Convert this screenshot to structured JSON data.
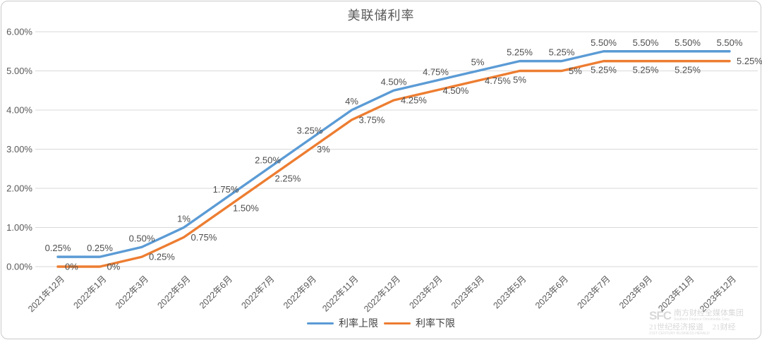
{
  "title": "美联储利率",
  "chart_data": {
    "type": "line",
    "title": "美联储利率",
    "categories": [
      "2021年12月",
      "2022年1月",
      "2022年3月",
      "2022年5月",
      "2022年6月",
      "2022年7月",
      "2022年9月",
      "2022年11月",
      "2022年12月",
      "2023年2月",
      "2023年3月",
      "2023年5月",
      "2023年6月",
      "2023年7月",
      "2023年9月",
      "2023年11月",
      "2023年12月"
    ],
    "series": [
      {
        "name": "利率上限",
        "color": "#5B9BD5",
        "values": [
          0.25,
          0.25,
          0.5,
          1,
          1.75,
          2.5,
          3.25,
          4,
          4.5,
          4.75,
          5,
          5.25,
          5.25,
          5.5,
          5.5,
          5.5,
          5.5
        ],
        "labels": [
          "0.25%",
          "0.25%",
          "0.50%",
          "1%",
          "1.75%",
          "2.50%",
          "3.25%",
          "4%",
          "4.50%",
          "4.75%",
          "5%",
          "5.25%",
          "5.25%",
          "5.50%",
          "5.50%",
          "5.50%",
          "5.50%"
        ],
        "label_pos": [
          "above",
          "above",
          "above",
          "above",
          "above",
          "above",
          "above",
          "above",
          "above",
          "above",
          "above",
          "above",
          "above",
          "above",
          "above",
          "above",
          "above"
        ]
      },
      {
        "name": "利率下限",
        "color": "#ED7D31",
        "values": [
          0,
          0,
          0.25,
          0.75,
          1.5,
          2.25,
          3,
          3.75,
          4.25,
          4.5,
          4.75,
          5,
          5,
          5.25,
          5.25,
          5.25,
          5.25
        ],
        "labels": [
          "0%",
          "0%",
          "0.25%",
          "0.75%",
          "1.50%",
          "2.25%",
          "3%",
          "3.75%",
          "4.25%",
          "4.50%",
          "4.75%",
          "5%",
          "5%",
          "5.25%",
          "5.25%",
          "5.25%",
          "5.25%"
        ],
        "label_pos": [
          "right",
          "right",
          "right",
          "right",
          "right",
          "right",
          "right",
          "right",
          "right",
          "right",
          "right",
          "below",
          "right",
          "below",
          "below",
          "below",
          "right"
        ]
      }
    ],
    "y_ticks": [
      "0.00%",
      "1.00%",
      "2.00%",
      "3.00%",
      "4.00%",
      "5.00%",
      "6.00%"
    ],
    "ylim": [
      0,
      6
    ],
    "grid": true,
    "legend_position": "bottom",
    "x_label_rotation": -45
  },
  "legend": {
    "items": [
      {
        "label": "利率上限",
        "color": "#5B9BD5"
      },
      {
        "label": "利率下限",
        "color": "#ED7D31"
      }
    ]
  },
  "watermark": {
    "logo": "SFC",
    "org_cn": "南方财经全媒体集团",
    "org_en": "Southern Finance Omnimedia Corp.",
    "brand1_cn": "21世纪经济报道",
    "brand1_en": "21ST CENTURY BUSINESS HERALD",
    "brand2_cn": "21财经"
  },
  "colors": {
    "grid": "#D9D9D9",
    "axis_text": "#595959",
    "data_label": "#4d4d4d",
    "title": "#595959"
  }
}
